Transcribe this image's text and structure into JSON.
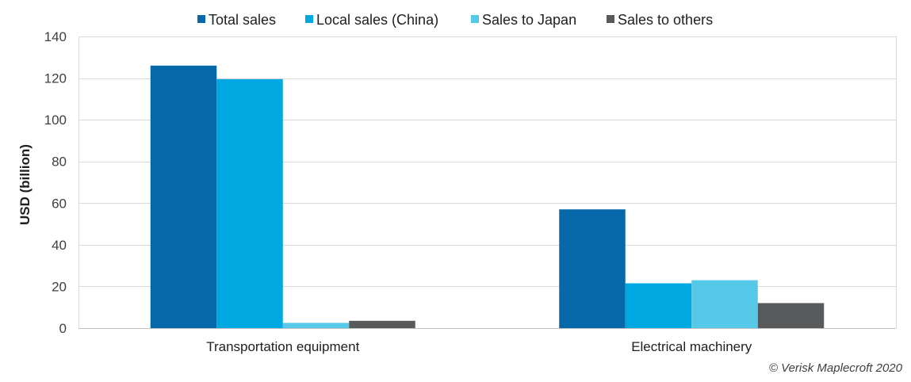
{
  "chart_data": {
    "type": "bar",
    "categories": [
      "Transportation equipment",
      "Electrical machinery"
    ],
    "series": [
      {
        "name": "Total sales",
        "values": [
          126,
          57
        ],
        "color": "#0768A9"
      },
      {
        "name": "Local sales (China)",
        "values": [
          119.5,
          21.5
        ],
        "color": "#00A8E1"
      },
      {
        "name": "Sales to Japan",
        "values": [
          2.5,
          23
        ],
        "color": "#56C9E8"
      },
      {
        "name": "Sales to others",
        "values": [
          3.5,
          12
        ],
        "color": "#58595B"
      }
    ],
    "ylabel": "USD (billion)",
    "ylim": [
      0,
      140
    ],
    "yticks": [
      0,
      20,
      40,
      60,
      80,
      100,
      120,
      140
    ],
    "grid": true,
    "legend_position": "top",
    "gridline_color": "#D9D9D9"
  },
  "credit": "© Verisk Maplecroft 2020"
}
